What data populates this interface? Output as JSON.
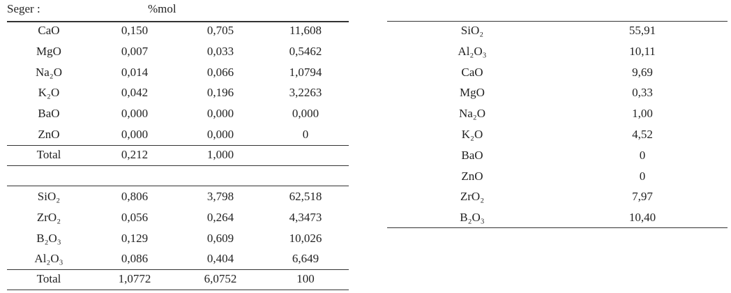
{
  "header": {
    "title": "Seger :",
    "unit": "%mol"
  },
  "left_table": {
    "top_rows": [
      [
        "CaO",
        "0,150",
        "0,705",
        "11,608"
      ],
      [
        "MgO",
        "0,007",
        "0,033",
        "0,5462"
      ],
      [
        "Na₂O",
        "0,014",
        "0,066",
        "1,0794"
      ],
      [
        "K₂O",
        "0,042",
        "0,196",
        "3,2263"
      ],
      [
        "BaO",
        "0,000",
        "0,000",
        "0,000"
      ],
      [
        "ZnO",
        "0,000",
        "0,000",
        "0"
      ]
    ],
    "top_total": [
      "Total",
      "0,212",
      "1,000"
    ],
    "bottom_rows": [
      [
        "SiO₂",
        "0,806",
        "3,798",
        "62,518"
      ],
      [
        "ZrO₂",
        "0,056",
        "0,264",
        "4,3473"
      ],
      [
        "B₂O₃",
        "0,129",
        "0,609",
        "10,026"
      ],
      [
        "Al₂O₃",
        "0,086",
        "0,404",
        "6,649"
      ]
    ],
    "bottom_total": [
      "Total",
      "1,0772",
      "6,0752",
      "100"
    ]
  },
  "right_table": {
    "rows": [
      [
        "SiO₂",
        "55,91"
      ],
      [
        "Al₂O₃",
        "10,11"
      ],
      [
        "CaO",
        "9,69"
      ],
      [
        "MgO",
        "0,33"
      ],
      [
        "Na₂O",
        "1,00"
      ],
      [
        "K₂O",
        "4,52"
      ],
      [
        "BaO",
        "0"
      ],
      [
        "ZnO",
        "0"
      ],
      [
        "ZrO₂",
        "7,97"
      ],
      [
        "B₂O₃",
        "10,40"
      ]
    ]
  }
}
